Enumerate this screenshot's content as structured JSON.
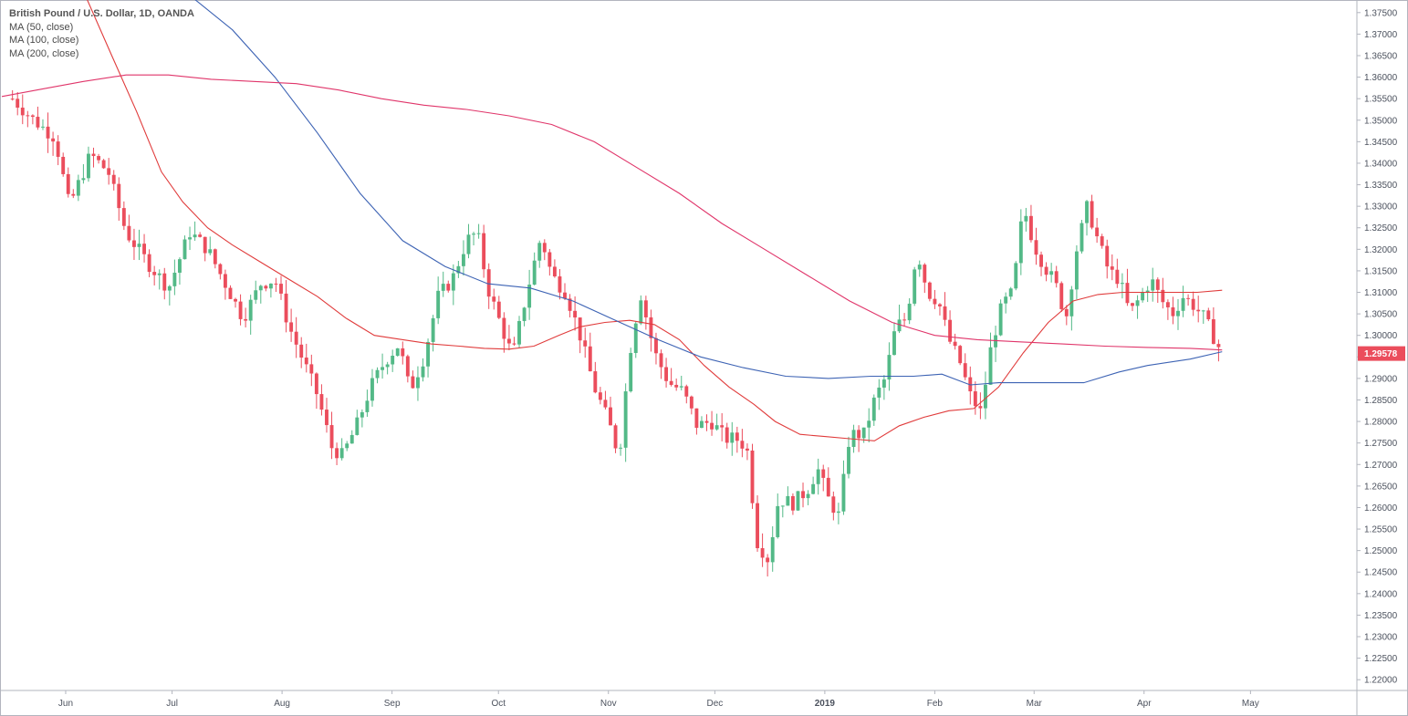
{
  "legend": {
    "symbol": "British Pound / U.S. Dollar, 1D, OANDA",
    "ma50": "MA (50, close)",
    "ma100": "MA (100, close)",
    "ma200": "MA (200, close)"
  },
  "colors": {
    "up": "#53b987",
    "down": "#eb4d5c",
    "ma50": "#e03b3b",
    "ma100": "#3d63b4",
    "ma200": "#e0356a",
    "axis": "#b2b5be",
    "text": "#4c525e"
  },
  "last_price_label": "1.29578",
  "chart_data": {
    "type": "candlestick",
    "title": "British Pound / U.S. Dollar, 1D, OANDA",
    "ylim": [
      1.2175,
      1.3775
    ],
    "y_ticks": [
      "1.37500",
      "1.37000",
      "1.36500",
      "1.36000",
      "1.35500",
      "1.35000",
      "1.34500",
      "1.34000",
      "1.33500",
      "1.33000",
      "1.32500",
      "1.32000",
      "1.31500",
      "1.31000",
      "1.30500",
      "1.30000",
      "1.29500",
      "1.29000",
      "1.28500",
      "1.28000",
      "1.27500",
      "1.27000",
      "1.26500",
      "1.26000",
      "1.25500",
      "1.25000",
      "1.24500",
      "1.24000",
      "1.23500",
      "1.23000",
      "1.22500",
      "1.22000"
    ],
    "x_labels": [
      {
        "label": "Jun",
        "day": 15
      },
      {
        "label": "Jul",
        "day": 45
      },
      {
        "label": "Aug",
        "day": 76
      },
      {
        "label": "Sep",
        "day": 107
      },
      {
        "label": "Oct",
        "day": 137
      },
      {
        "label": "Nov",
        "day": 168
      },
      {
        "label": "Dec",
        "day": 198
      },
      {
        "label": "2019",
        "day": 229,
        "bold": true
      },
      {
        "label": "Feb",
        "day": 260
      },
      {
        "label": "Mar",
        "day": 288
      },
      {
        "label": "Apr",
        "day": 319
      },
      {
        "label": "May",
        "day": 349
      }
    ],
    "x_domain": [
      -3,
      379
    ],
    "series_keypoints": [
      [
        0,
        1.355
      ],
      [
        6,
        1.35
      ],
      [
        12,
        1.346
      ],
      [
        16,
        1.33
      ],
      [
        22,
        1.342
      ],
      [
        27,
        1.338
      ],
      [
        32,
        1.324
      ],
      [
        38,
        1.317
      ],
      [
        44,
        1.311
      ],
      [
        50,
        1.324
      ],
      [
        55,
        1.32
      ],
      [
        60,
        1.312
      ],
      [
        65,
        1.304
      ],
      [
        70,
        1.312
      ],
      [
        74,
        1.313
      ],
      [
        78,
        1.302
      ],
      [
        82,
        1.294
      ],
      [
        86,
        1.286
      ],
      [
        90,
        1.274
      ],
      [
        93,
        1.272
      ],
      [
        97,
        1.279
      ],
      [
        101,
        1.288
      ],
      [
        105,
        1.294
      ],
      [
        109,
        1.298
      ],
      [
        112,
        1.287
      ],
      [
        116,
        1.295
      ],
      [
        120,
        1.309
      ],
      [
        124,
        1.313
      ],
      [
        128,
        1.322
      ],
      [
        131,
        1.324
      ],
      [
        134,
        1.311
      ],
      [
        137,
        1.304
      ],
      [
        141,
        1.295
      ],
      [
        145,
        1.31
      ],
      [
        149,
        1.323
      ],
      [
        152,
        1.314
      ],
      [
        156,
        1.31
      ],
      [
        160,
        1.3
      ],
      [
        164,
        1.288
      ],
      [
        168,
        1.28
      ],
      [
        171,
        1.272
      ],
      [
        174,
        1.296
      ],
      [
        177,
        1.31
      ],
      [
        181,
        1.296
      ],
      [
        185,
        1.289
      ],
      [
        189,
        1.287
      ],
      [
        193,
        1.279
      ],
      [
        197,
        1.28
      ],
      [
        201,
        1.276
      ],
      [
        204,
        1.276
      ],
      [
        207,
        1.274
      ],
      [
        210,
        1.252
      ],
      [
        213,
        1.248
      ],
      [
        216,
        1.262
      ],
      [
        220,
        1.261
      ],
      [
        224,
        1.264
      ],
      [
        227,
        1.269
      ],
      [
        230,
        1.262
      ],
      [
        233,
        1.258
      ],
      [
        236,
        1.277
      ],
      [
        240,
        1.277
      ],
      [
        243,
        1.285
      ],
      [
        246,
        1.29
      ],
      [
        249,
        1.302
      ],
      [
        252,
        1.304
      ],
      [
        255,
        1.32
      ],
      [
        258,
        1.31
      ],
      [
        261,
        1.308
      ],
      [
        264,
        1.299
      ],
      [
        267,
        1.294
      ],
      [
        270,
        1.286
      ],
      [
        273,
        1.282
      ],
      [
        276,
        1.298
      ],
      [
        279,
        1.307
      ],
      [
        282,
        1.31
      ],
      [
        285,
        1.33
      ],
      [
        288,
        1.321
      ],
      [
        291,
        1.316
      ],
      [
        294,
        1.312
      ],
      [
        297,
        1.304
      ],
      [
        300,
        1.32
      ],
      [
        303,
        1.33
      ],
      [
        306,
        1.322
      ],
      [
        309,
        1.315
      ],
      [
        312,
        1.313
      ],
      [
        315,
        1.305
      ],
      [
        318,
        1.309
      ],
      [
        321,
        1.313
      ],
      [
        324,
        1.308
      ],
      [
        327,
        1.305
      ],
      [
        330,
        1.309
      ],
      [
        333,
        1.307
      ],
      [
        336,
        1.304
      ],
      [
        339,
        1.299
      ],
      [
        341,
        1.2958
      ]
    ],
    "candle_day_step": 1.4286,
    "ma_series": [
      {
        "name": "MA (50, close)",
        "key": "ma50",
        "points": [
          [
            20,
            1.38
          ],
          [
            28,
            1.365
          ],
          [
            35,
            1.352
          ],
          [
            42,
            1.338
          ],
          [
            48,
            1.331
          ],
          [
            55,
            1.325
          ],
          [
            62,
            1.321
          ],
          [
            70,
            1.317
          ],
          [
            78,
            1.313
          ],
          [
            86,
            1.309
          ],
          [
            94,
            1.304
          ],
          [
            102,
            1.3
          ],
          [
            110,
            1.299
          ],
          [
            118,
            1.298
          ],
          [
            126,
            1.2975
          ],
          [
            133,
            1.297
          ],
          [
            140,
            1.2968
          ],
          [
            147,
            1.2975
          ],
          [
            154,
            1.3
          ],
          [
            160,
            1.302
          ],
          [
            167,
            1.303
          ],
          [
            174,
            1.3035
          ],
          [
            181,
            1.3025
          ],
          [
            188,
            1.299
          ],
          [
            195,
            1.293
          ],
          [
            202,
            1.288
          ],
          [
            209,
            1.284
          ],
          [
            215,
            1.28
          ],
          [
            222,
            1.277
          ],
          [
            229,
            1.2765
          ],
          [
            236,
            1.276
          ],
          [
            243,
            1.2755
          ],
          [
            250,
            1.279
          ],
          [
            257,
            1.281
          ],
          [
            264,
            1.2825
          ],
          [
            271,
            1.283
          ],
          [
            278,
            1.288
          ],
          [
            285,
            1.296
          ],
          [
            292,
            1.303
          ],
          [
            299,
            1.308
          ],
          [
            306,
            1.3095
          ],
          [
            313,
            1.31
          ],
          [
            320,
            1.31
          ],
          [
            327,
            1.31
          ],
          [
            334,
            1.31
          ],
          [
            341,
            1.3105
          ]
        ]
      },
      {
        "name": "MA (100, close)",
        "key": "ma100",
        "points": [
          [
            50,
            1.379
          ],
          [
            62,
            1.371
          ],
          [
            74,
            1.36
          ],
          [
            86,
            1.347
          ],
          [
            98,
            1.333
          ],
          [
            110,
            1.322
          ],
          [
            122,
            1.316
          ],
          [
            134,
            1.312
          ],
          [
            146,
            1.311
          ],
          [
            158,
            1.308
          ],
          [
            170,
            1.3035
          ],
          [
            182,
            1.299
          ],
          [
            194,
            1.295
          ],
          [
            206,
            1.2925
          ],
          [
            218,
            1.2905
          ],
          [
            230,
            1.29
          ],
          [
            242,
            1.2905
          ],
          [
            254,
            1.2905
          ],
          [
            262,
            1.291
          ],
          [
            270,
            1.2885
          ],
          [
            278,
            1.289
          ],
          [
            290,
            1.289
          ],
          [
            302,
            1.289
          ],
          [
            312,
            1.2915
          ],
          [
            320,
            1.293
          ],
          [
            332,
            1.2945
          ],
          [
            341,
            1.2962
          ]
        ]
      },
      {
        "name": "MA (200, close)",
        "key": "ma200",
        "points": [
          [
            -3,
            1.3555
          ],
          [
            10,
            1.3575
          ],
          [
            20,
            1.359
          ],
          [
            32,
            1.3605
          ],
          [
            44,
            1.3605
          ],
          [
            56,
            1.3595
          ],
          [
            68,
            1.359
          ],
          [
            80,
            1.3585
          ],
          [
            92,
            1.357
          ],
          [
            104,
            1.355
          ],
          [
            116,
            1.3535
          ],
          [
            128,
            1.3525
          ],
          [
            140,
            1.351
          ],
          [
            152,
            1.349
          ],
          [
            164,
            1.345
          ],
          [
            176,
            1.339
          ],
          [
            188,
            1.333
          ],
          [
            200,
            1.326
          ],
          [
            212,
            1.32
          ],
          [
            224,
            1.314
          ],
          [
            236,
            1.308
          ],
          [
            248,
            1.303
          ],
          [
            260,
            1.3
          ],
          [
            272,
            1.299
          ],
          [
            284,
            1.2985
          ],
          [
            296,
            1.298
          ],
          [
            308,
            1.2975
          ],
          [
            320,
            1.2972
          ],
          [
            332,
            1.297
          ],
          [
            341,
            1.2966
          ]
        ]
      }
    ]
  }
}
